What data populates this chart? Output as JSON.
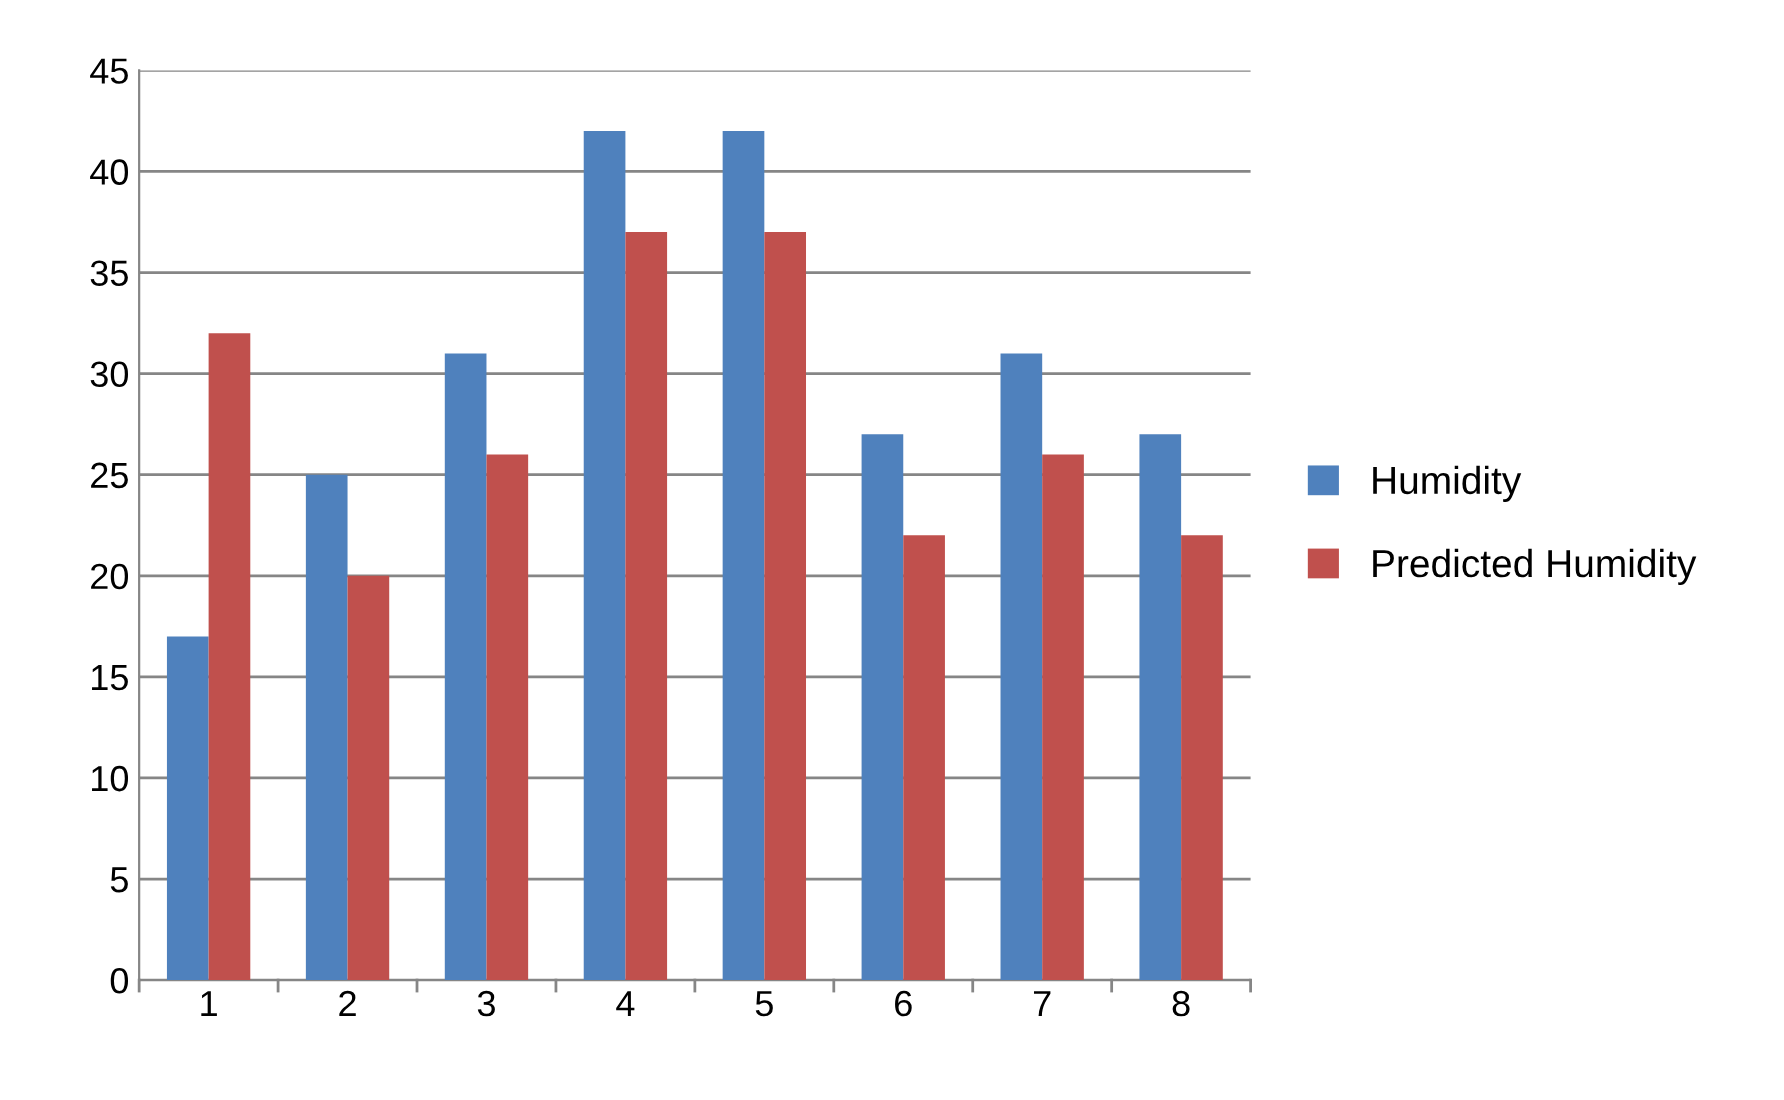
{
  "chart_data": {
    "type": "bar",
    "categories": [
      "1",
      "2",
      "3",
      "4",
      "5",
      "6",
      "7",
      "8"
    ],
    "series": [
      {
        "name": "Humidity",
        "color": "#4f81bd",
        "values": [
          17,
          25,
          31,
          42,
          42,
          27,
          31,
          27
        ]
      },
      {
        "name": "Predicted Humidity",
        "color": "#c0504d",
        "values": [
          32,
          20,
          26,
          37,
          37,
          22,
          26,
          22
        ]
      }
    ],
    "ylim": [
      0,
      45
    ],
    "yticks": [
      0,
      5,
      10,
      15,
      20,
      25,
      30,
      35,
      40,
      45
    ],
    "grid": "y",
    "legend": "right"
  }
}
